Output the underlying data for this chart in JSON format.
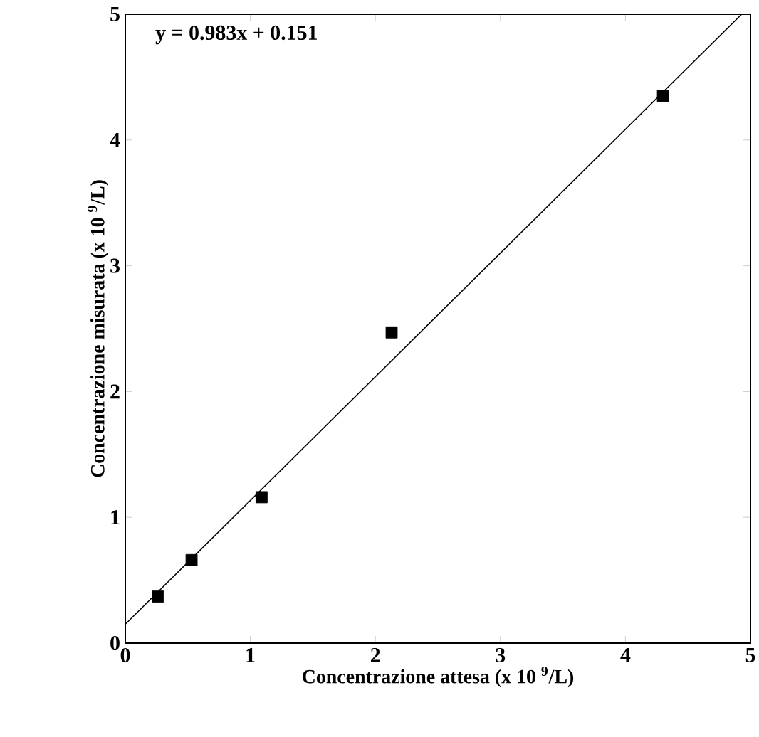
{
  "chart_data": {
    "type": "scatter",
    "xlabel": "Concentrazione attesa (x 10 $^{9}$/L)",
    "ylabel": "Concentrazione misurata (x 10 $^{9}$/L)",
    "annotations": [
      "y = 0.983x + 0.151"
    ],
    "xlim": [
      0,
      5
    ],
    "ylim": [
      0,
      5
    ],
    "xticks": [
      0,
      1,
      2,
      3,
      4,
      5
    ],
    "yticks": [
      0,
      1,
      2,
      3,
      4,
      5
    ],
    "marker": "square",
    "series": [
      {
        "color": "#000000",
        "x": [
          0.26,
          0.53,
          1.09,
          2.13,
          4.3
        ],
        "values": [
          0.37,
          0.66,
          1.16,
          2.47,
          4.35
        ]
      },
      {
        "type": "line",
        "color": "#000000",
        "marker": "none",
        "x": [
          0,
          4.93
        ],
        "values": [
          0.15,
          5.0
        ]
      }
    ]
  }
}
